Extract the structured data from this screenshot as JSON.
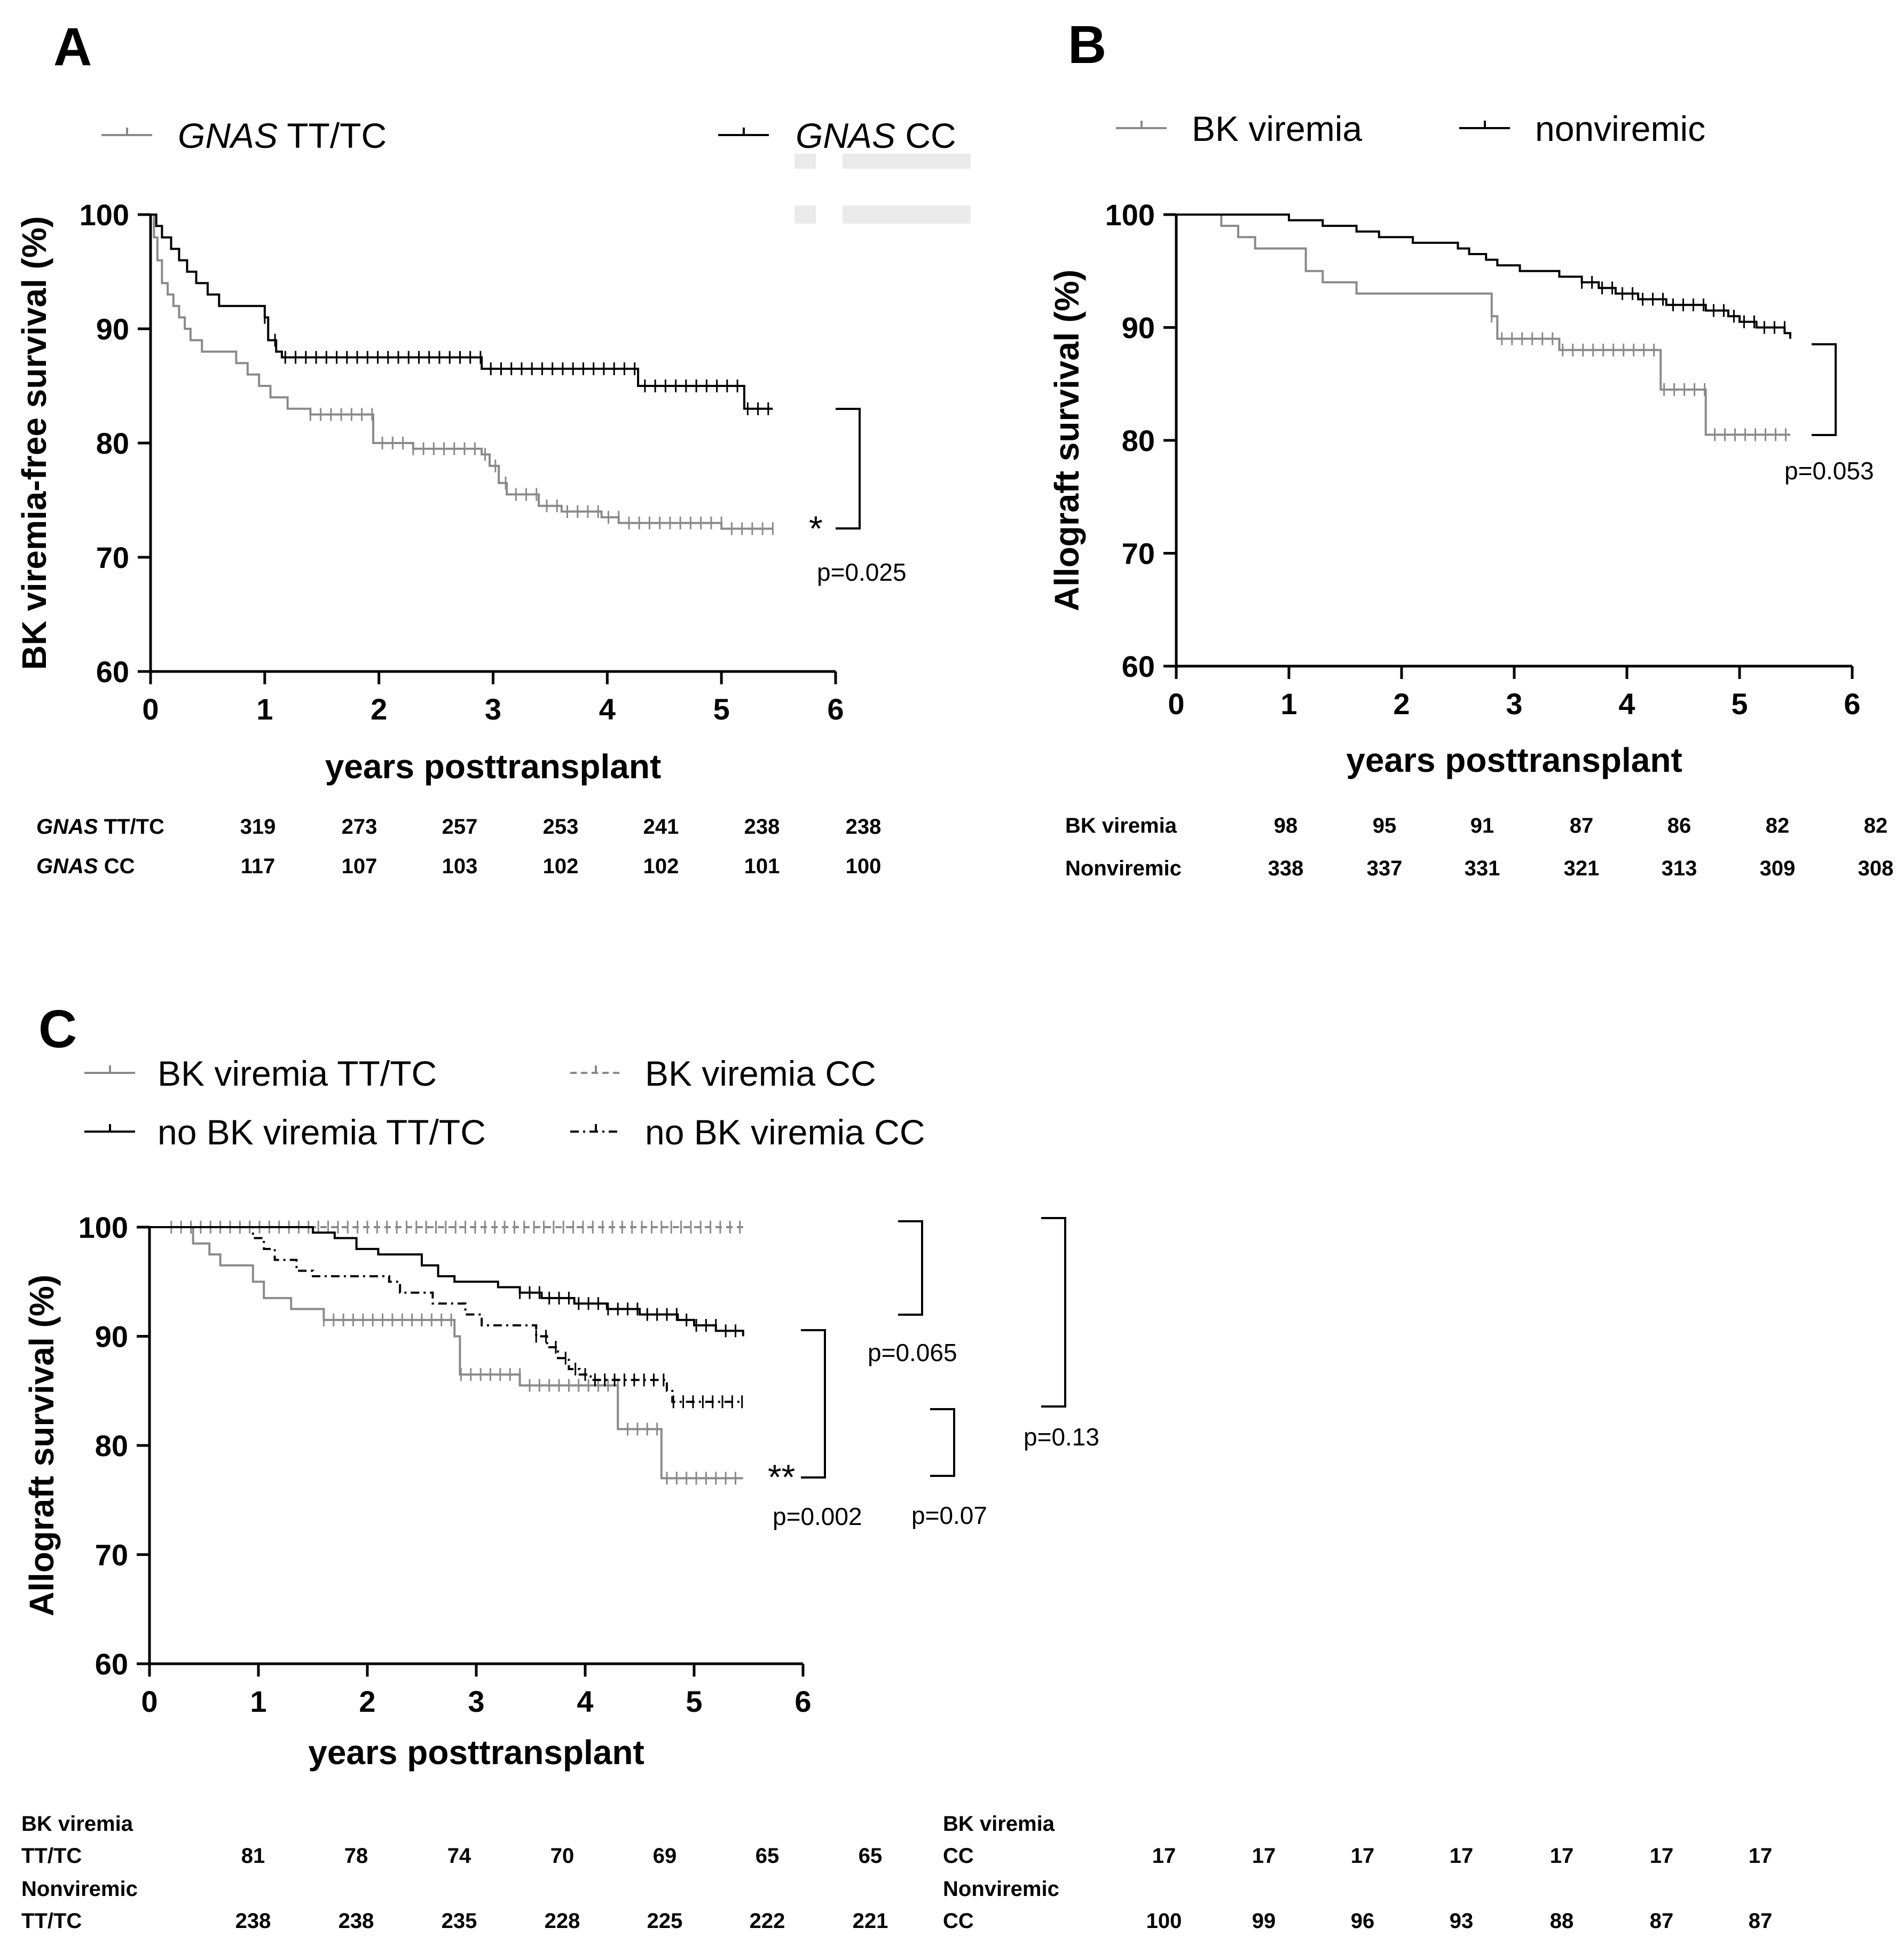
{
  "panels": {
    "a": "A",
    "b": "B",
    "c": "C"
  },
  "colors": {
    "gray": "#8a8a8a",
    "black": "#000000"
  },
  "chart_data": [
    {
      "id": "A",
      "type": "line",
      "subtype": "kaplan-meier",
      "xlabel": "years posttransplant",
      "ylabel": "BK viremia-free survival (%)",
      "xlim": [
        0,
        6
      ],
      "ylim": [
        60,
        100
      ],
      "xticks": [
        "0",
        "1",
        "2",
        "3",
        "4",
        "5",
        "6"
      ],
      "yticks": [
        "60",
        "70",
        "80",
        "90",
        "100"
      ],
      "legend": [
        {
          "italic": "GNAS",
          "rest": " TT/TC",
          "color": "gray"
        },
        {
          "italic": "GNAS",
          "rest": " CC",
          "color": "black"
        }
      ],
      "series": [
        {
          "name": "GNAS TT/TC",
          "color": "gray",
          "steps": [
            [
              0,
              100
            ],
            [
              0.03,
              98
            ],
            [
              0.06,
              96
            ],
            [
              0.1,
              94
            ],
            [
              0.15,
              93
            ],
            [
              0.2,
              92
            ],
            [
              0.25,
              91
            ],
            [
              0.3,
              90
            ],
            [
              0.35,
              89
            ],
            [
              0.45,
              88
            ],
            [
              0.75,
              87
            ],
            [
              0.85,
              86
            ],
            [
              0.95,
              85
            ],
            [
              1.05,
              84
            ],
            [
              1.2,
              83
            ],
            [
              1.4,
              82.5
            ],
            [
              1.95,
              80
            ],
            [
              2.3,
              79.5
            ],
            [
              2.9,
              79
            ],
            [
              2.97,
              78
            ],
            [
              3.05,
              76.5
            ],
            [
              3.12,
              75.5
            ],
            [
              3.4,
              74.5
            ],
            [
              3.6,
              74
            ],
            [
              3.95,
              73.5
            ],
            [
              4.1,
              73
            ],
            [
              5.0,
              72.5
            ],
            [
              5.45,
              72.5
            ]
          ]
        },
        {
          "name": "GNAS CC",
          "color": "black",
          "steps": [
            [
              0,
              100
            ],
            [
              0.05,
              99
            ],
            [
              0.1,
              98
            ],
            [
              0.18,
              97
            ],
            [
              0.25,
              96
            ],
            [
              0.32,
              95
            ],
            [
              0.4,
              94
            ],
            [
              0.5,
              93
            ],
            [
              0.6,
              92
            ],
            [
              1.0,
              91
            ],
            [
              1.03,
              89
            ],
            [
              1.1,
              88
            ],
            [
              1.15,
              87.5
            ],
            [
              2.9,
              86.5
            ],
            [
              4.27,
              85
            ],
            [
              5.2,
              83
            ],
            [
              5.45,
              83
            ]
          ]
        }
      ],
      "annotations": [
        {
          "text": "*"
        },
        {
          "text": "p=0.025"
        }
      ],
      "risk_table": [
        {
          "italic": "GNAS",
          "rest": " TT/TC",
          "values": [
            "319",
            "273",
            "257",
            "253",
            "241",
            "238",
            "238"
          ]
        },
        {
          "italic": "GNAS",
          "rest": " CC",
          "values": [
            "117",
            "107",
            "103",
            "102",
            "102",
            "101",
            "100"
          ]
        }
      ]
    },
    {
      "id": "B",
      "type": "line",
      "subtype": "kaplan-meier",
      "xlabel": "years posttransplant",
      "ylabel": "Allograft survival (%)",
      "xlim": [
        0,
        6
      ],
      "ylim": [
        60,
        100
      ],
      "xticks": [
        "0",
        "1",
        "2",
        "3",
        "4",
        "5",
        "6"
      ],
      "yticks": [
        "60",
        "70",
        "80",
        "90",
        "100"
      ],
      "legend": [
        {
          "text": "BK viremia",
          "color": "gray"
        },
        {
          "text": "nonviremic",
          "color": "black"
        }
      ],
      "series": [
        {
          "name": "BK viremia",
          "color": "gray",
          "steps": [
            [
              0,
              100
            ],
            [
              0.4,
              99
            ],
            [
              0.55,
              98
            ],
            [
              0.7,
              97
            ],
            [
              1.15,
              95
            ],
            [
              1.3,
              94
            ],
            [
              1.6,
              93
            ],
            [
              2.8,
              91
            ],
            [
              2.85,
              89
            ],
            [
              3.4,
              88
            ],
            [
              4.3,
              84.5
            ],
            [
              4.7,
              80.5
            ],
            [
              5.45,
              80.5
            ]
          ]
        },
        {
          "name": "nonviremic",
          "color": "black",
          "steps": [
            [
              0,
              100
            ],
            [
              1.0,
              99.5
            ],
            [
              1.3,
              99
            ],
            [
              1.6,
              98.5
            ],
            [
              1.8,
              98
            ],
            [
              2.1,
              97.5
            ],
            [
              2.5,
              97
            ],
            [
              2.6,
              96.5
            ],
            [
              2.75,
              96
            ],
            [
              2.85,
              95.5
            ],
            [
              3.05,
              95
            ],
            [
              3.4,
              94.5
            ],
            [
              3.6,
              94
            ],
            [
              3.75,
              93.5
            ],
            [
              3.9,
              93
            ],
            [
              4.1,
              92.5
            ],
            [
              4.35,
              92
            ],
            [
              4.7,
              91.5
            ],
            [
              4.9,
              91
            ],
            [
              5.0,
              90.5
            ],
            [
              5.15,
              90
            ],
            [
              5.4,
              89.5
            ],
            [
              5.45,
              89
            ]
          ]
        }
      ],
      "annotations": [
        {
          "text": "p=0.053"
        }
      ],
      "risk_table": [
        {
          "name": "BK viremia",
          "values": [
            "98",
            "95",
            "91",
            "87",
            "86",
            "82",
            "82"
          ]
        },
        {
          "name": "Nonviremic",
          "values": [
            "338",
            "337",
            "331",
            "321",
            "313",
            "309",
            "308"
          ]
        }
      ]
    },
    {
      "id": "C",
      "type": "line",
      "subtype": "kaplan-meier",
      "xlabel": "years posttransplant",
      "ylabel": "Allograft survival (%)",
      "xlim": [
        0,
        6
      ],
      "ylim": [
        60,
        100
      ],
      "xticks": [
        "0",
        "1",
        "2",
        "3",
        "4",
        "5",
        "6"
      ],
      "yticks": [
        "60",
        "70",
        "80",
        "90",
        "100"
      ],
      "legend": [
        {
          "text": "BK viremia TT/TC",
          "color": "gray",
          "dash": ""
        },
        {
          "text": "BK viremia CC",
          "color": "gray",
          "dash": "12 8"
        },
        {
          "text": "no BK viremia TT/TC",
          "color": "black",
          "dash": ""
        },
        {
          "text": "no BK viremia CC",
          "color": "black",
          "dash": "16 8 4 8"
        }
      ],
      "series": [
        {
          "name": "BK viremia TT/TC",
          "color": "gray",
          "dash": "",
          "steps": [
            [
              0,
              100
            ],
            [
              0.4,
              98.5
            ],
            [
              0.55,
              97.5
            ],
            [
              0.65,
              96.5
            ],
            [
              0.95,
              95
            ],
            [
              1.05,
              93.5
            ],
            [
              1.3,
              92.5
            ],
            [
              1.6,
              91.5
            ],
            [
              2.8,
              90
            ],
            [
              2.85,
              86.5
            ],
            [
              3.4,
              85.5
            ],
            [
              4.3,
              81.5
            ],
            [
              4.7,
              77
            ],
            [
              5.45,
              77
            ]
          ]
        },
        {
          "name": "BK viremia CC",
          "color": "gray",
          "dash": "12 8",
          "steps": [
            [
              0,
              100
            ],
            [
              5.45,
              100
            ]
          ]
        },
        {
          "name": "no BK viremia TT/TC",
          "color": "black",
          "dash": "",
          "steps": [
            [
              0,
              100
            ],
            [
              1.5,
              99.5
            ],
            [
              1.7,
              99
            ],
            [
              1.9,
              98
            ],
            [
              2.1,
              97.5
            ],
            [
              2.5,
              96.5
            ],
            [
              2.65,
              95.5
            ],
            [
              2.8,
              95
            ],
            [
              3.2,
              94.5
            ],
            [
              3.4,
              94
            ],
            [
              3.6,
              93.5
            ],
            [
              3.9,
              93
            ],
            [
              4.2,
              92.5
            ],
            [
              4.5,
              92
            ],
            [
              4.85,
              91.5
            ],
            [
              5.0,
              91
            ],
            [
              5.2,
              90.5
            ],
            [
              5.45,
              90
            ]
          ]
        },
        {
          "name": "no BK viremia CC",
          "color": "black",
          "dash": "16 8 4 8",
          "steps": [
            [
              0,
              100
            ],
            [
              0.95,
              99
            ],
            [
              1.05,
              98
            ],
            [
              1.15,
              97
            ],
            [
              1.35,
              96
            ],
            [
              1.5,
              95.5
            ],
            [
              2.2,
              95
            ],
            [
              2.3,
              94
            ],
            [
              2.6,
              93
            ],
            [
              2.9,
              92
            ],
            [
              3.05,
              91
            ],
            [
              3.55,
              90
            ],
            [
              3.65,
              89
            ],
            [
              3.75,
              88
            ],
            [
              3.85,
              87
            ],
            [
              3.95,
              86.5
            ],
            [
              4.05,
              86
            ],
            [
              4.75,
              85
            ],
            [
              4.8,
              84
            ],
            [
              5.45,
              84
            ]
          ]
        }
      ],
      "annotations": [
        {
          "text": "**"
        },
        {
          "text": "p=0.002"
        },
        {
          "text": "p=0.065"
        },
        {
          "text": "p=0.07"
        },
        {
          "text": "p=0.13"
        }
      ],
      "risk_table_left": [
        {
          "line1": "BK viremia",
          "line2": "TT/TC",
          "values": [
            "81",
            "78",
            "74",
            "70",
            "69",
            "65",
            "65"
          ]
        },
        {
          "line1": "Nonviremic",
          "line2": "TT/TC",
          "values": [
            "238",
            "238",
            "235",
            "228",
            "225",
            "222",
            "221"
          ]
        }
      ],
      "risk_table_right": [
        {
          "line1": "BK viremia",
          "line2": "CC",
          "values": [
            "17",
            "17",
            "17",
            "17",
            "17",
            "17",
            "17"
          ]
        },
        {
          "line1": "Nonviremic",
          "line2": "CC",
          "values": [
            "100",
            "99",
            "96",
            "93",
            "88",
            "87",
            "87"
          ]
        }
      ]
    }
  ]
}
